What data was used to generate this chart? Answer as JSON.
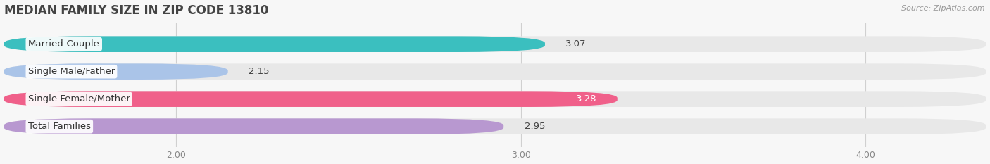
{
  "title": "MEDIAN FAMILY SIZE IN ZIP CODE 13810",
  "source": "Source: ZipAtlas.com",
  "categories": [
    "Married-Couple",
    "Single Male/Father",
    "Single Female/Mother",
    "Total Families"
  ],
  "values": [
    3.07,
    2.15,
    3.28,
    2.95
  ],
  "colors": [
    "#3bbfbf",
    "#aac4e8",
    "#f0608a",
    "#b898d0"
  ],
  "bar_bg_color": "#e8e8e8",
  "xmin": 1.5,
  "xmax": 4.35,
  "xticks": [
    2.0,
    3.0,
    4.0
  ],
  "xtick_labels": [
    "2.00",
    "3.00",
    "4.00"
  ],
  "bar_height": 0.58,
  "label_fontsize": 9.5,
  "value_fontsize": 9.5,
  "title_fontsize": 12,
  "background_color": "#f7f7f7",
  "value_inside_idx": 2,
  "value_inside_color": "white",
  "value_outside_color": "#444444"
}
